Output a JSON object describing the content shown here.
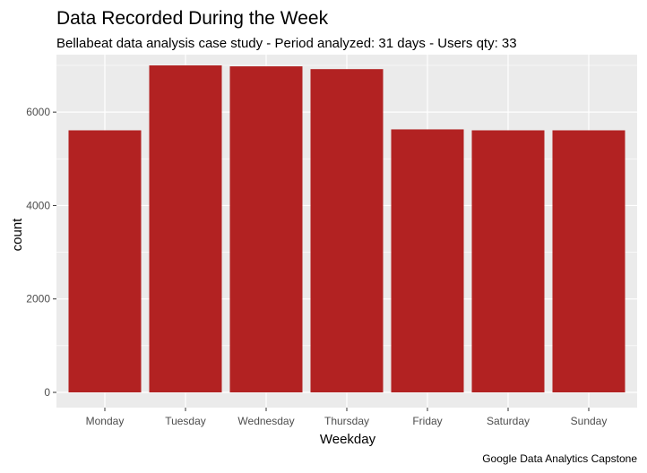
{
  "chart_data": {
    "type": "bar",
    "title": "Data Recorded During the Week",
    "subtitle": "Bellabeat data analysis case study - Period analyzed: 31 days - Users qty: 33",
    "xlabel": "Weekday",
    "ylabel": "count",
    "caption": "Google Data Analytics Capstone",
    "categories": [
      "Monday",
      "Tuesday",
      "Wednesday",
      "Thursday",
      "Friday",
      "Saturday",
      "Sunday"
    ],
    "values": [
      5610,
      7000,
      6980,
      6920,
      5630,
      5610,
      5610
    ],
    "ylim": [
      0,
      7400
    ],
    "yticks": [
      0,
      2000,
      4000,
      6000
    ],
    "ytick_labels": [
      "0",
      "2000",
      "4000",
      "6000"
    ],
    "grid": true,
    "colors": {
      "bar": "#b22222",
      "panel_background": "#ebebeb",
      "grid_major": "#ffffff"
    }
  }
}
